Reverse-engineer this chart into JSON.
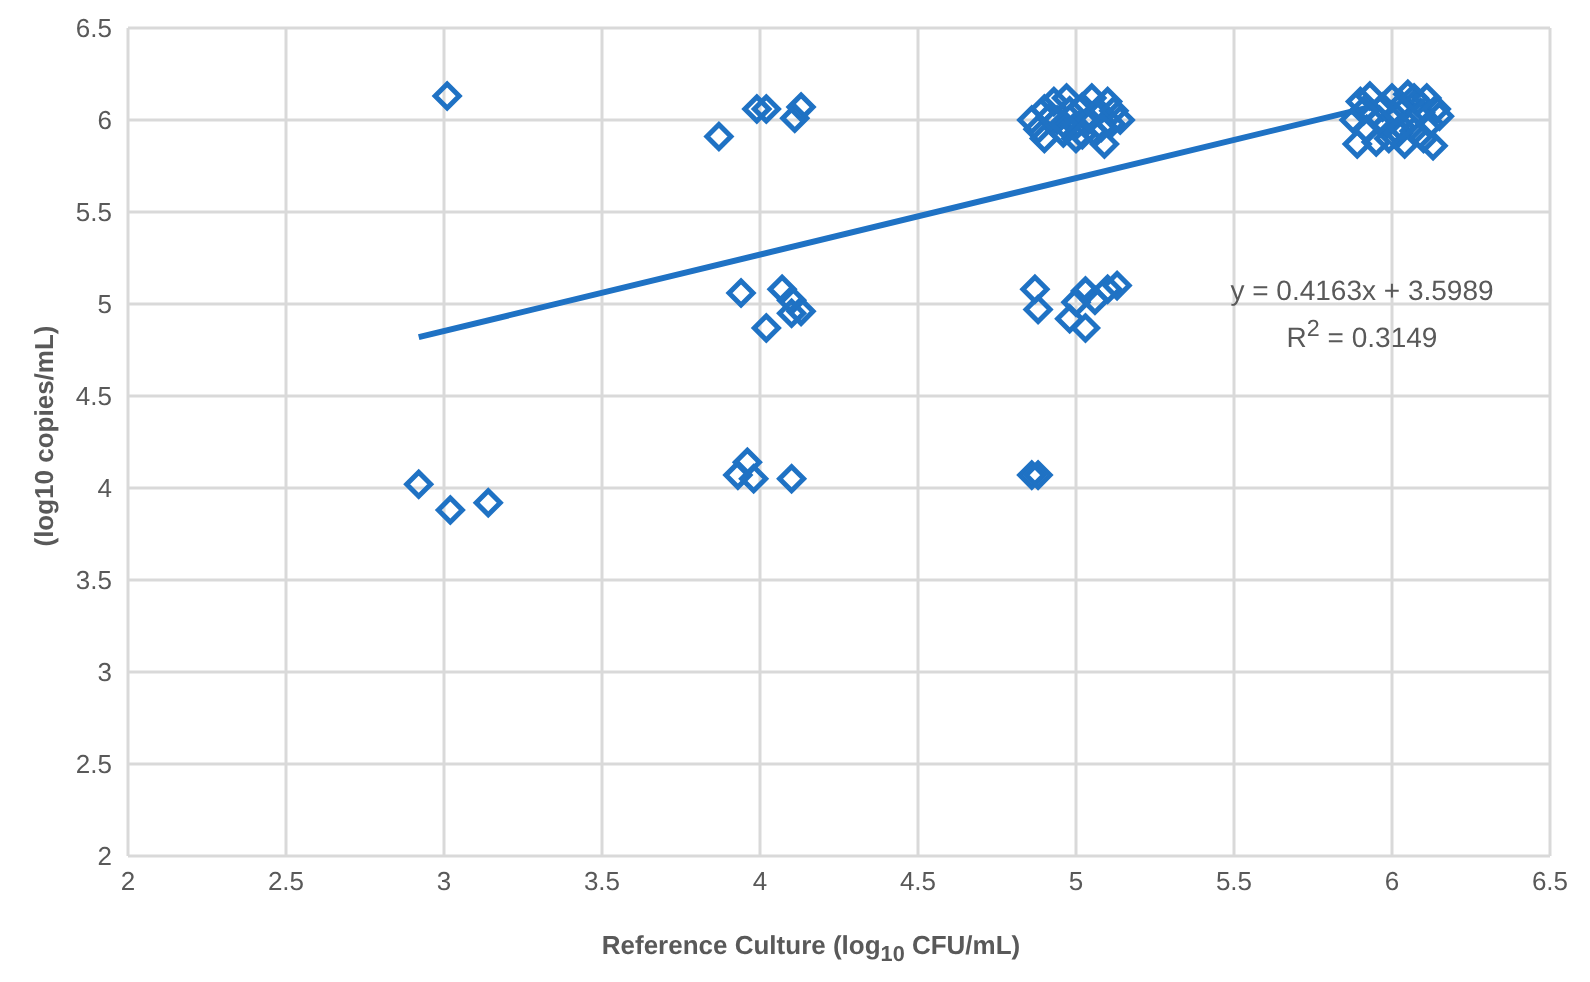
{
  "chart_data": {
    "type": "scatter",
    "xlabel": "Reference Culture (log$_{10}$ CFU/mL)",
    "ylabel": "(log10 copies/mL)",
    "xlim": [
      2,
      6.5
    ],
    "xticks": [
      2,
      2.5,
      3,
      3.5,
      4,
      4.5,
      5,
      5.5,
      6,
      6.5
    ],
    "ylim": [
      2,
      6.5
    ],
    "yticks": [
      2,
      2.5,
      3,
      3.5,
      4,
      4.5,
      5,
      5.5,
      6,
      6.5
    ],
    "grid": true,
    "legend": false,
    "marker": "diamond",
    "annotations": [
      "y = 0.4163x + 3.5989",
      "R$^{2}$ = 0.3149"
    ],
    "series": [
      {
        "color": "#1f72c4",
        "x": [
          3.01,
          2.92,
          3.02,
          3.14,
          3.87,
          3.99,
          4.02,
          4.11,
          4.13,
          3.94,
          4.07,
          4.1,
          4.1,
          4.13,
          4.02,
          3.93,
          3.96,
          3.98,
          4.1,
          4.86,
          4.88,
          4.87,
          4.88,
          4.98,
          5.0,
          5.03,
          5.03,
          5.06,
          5.1,
          5.13,
          4.86,
          4.88,
          4.9,
          4.9,
          4.93,
          4.94,
          4.96,
          4.97,
          4.98,
          5.0,
          5.0,
          5.02,
          5.04,
          5.05,
          5.06,
          5.07,
          5.09,
          5.1,
          5.11,
          5.12,
          5.14,
          4.92,
          5.08,
          4.96,
          5.02,
          5.88,
          5.89,
          5.9,
          5.92,
          5.93,
          5.94,
          5.95,
          5.97,
          5.98,
          5.99,
          6.0,
          6.01,
          6.02,
          6.03,
          6.04,
          6.05,
          6.06,
          6.07,
          6.08,
          6.09,
          6.1,
          6.11,
          6.12,
          6.13,
          6.14,
          6.15,
          5.96,
          6.03,
          5.91,
          6.07
        ],
        "values": [
          6.13,
          4.02,
          3.88,
          3.92,
          5.91,
          6.06,
          6.06,
          6.01,
          6.07,
          5.06,
          5.08,
          5.02,
          4.95,
          4.96,
          4.87,
          4.07,
          4.14,
          4.05,
          4.05,
          4.07,
          4.07,
          5.08,
          4.97,
          4.92,
          5.01,
          5.07,
          4.87,
          5.02,
          5.08,
          5.1,
          6.0,
          5.95,
          6.06,
          5.9,
          6.1,
          6.0,
          5.93,
          6.12,
          6.05,
          5.97,
          5.9,
          6.07,
          6.0,
          6.12,
          5.93,
          6.05,
          5.87,
          6.1,
          5.98,
          6.05,
          6.0,
          6.02,
          5.96,
          5.98,
          5.92,
          6.0,
          5.87,
          6.1,
          5.95,
          6.13,
          6.03,
          5.88,
          6.07,
          5.97,
          5.9,
          6.12,
          6.02,
          5.93,
          6.08,
          5.87,
          6.14,
          6.0,
          5.94,
          6.1,
          6.04,
          5.9,
          6.12,
          5.98,
          5.86,
          6.06,
          6.02,
          6.0,
          5.96,
          6.05,
          6.12
        ]
      },
      {
        "type": "line",
        "color": "#1f72c4",
        "line_style": "solid",
        "marker": "none",
        "x": [
          2.92,
          5.93
        ],
        "values": [
          4.82,
          6.07
        ]
      }
    ]
  }
}
